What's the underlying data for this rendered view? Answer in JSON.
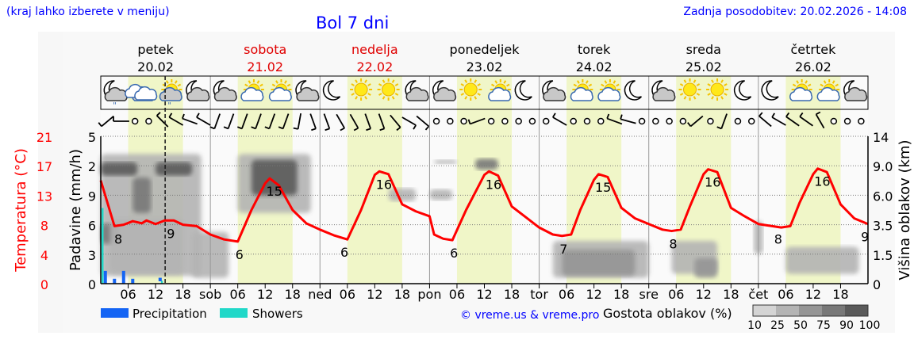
{
  "header": {
    "hint": "(kraj lahko izberete v meniju)",
    "title": "Bol 7 dni",
    "updated": "Zadnja posodobitev: 20.02.2026 - 14:08"
  },
  "days": [
    {
      "name": "petek",
      "date": "20.02",
      "weekend": false
    },
    {
      "name": "sobota",
      "date": "21.02",
      "weekend": true
    },
    {
      "name": "nedelja",
      "date": "22.02",
      "weekend": true
    },
    {
      "name": "ponedeljek",
      "date": "23.02",
      "weekend": false
    },
    {
      "name": "torek",
      "date": "24.02",
      "weekend": false
    },
    {
      "name": "sreda",
      "date": "25.02",
      "weekend": false
    },
    {
      "name": "četrtek",
      "date": "26.02",
      "weekend": false
    }
  ],
  "icons": [
    "moon-cloud-drizzle",
    "clouds",
    "sun-cloud-drizzle",
    "moon-cloud",
    "moon-cloud",
    "sun-small-cloud",
    "sun-cloud",
    "moon-cloud",
    "moon",
    "sun",
    "sun",
    "moon-cloud",
    "moon-cloud",
    "sun",
    "sun-cloud",
    "moon",
    "moon-cloud",
    "sun-cloud",
    "sun-cloud",
    "moon",
    "moon-cloud",
    "sun",
    "sun",
    "moon",
    "moon",
    "sun-cloud",
    "sun-cloud",
    "moon-cloud"
  ],
  "wind_dirs": [
    230,
    270,
    null,
    null,
    315,
    300,
    290,
    300,
    200,
    200,
    200,
    200,
    200,
    200,
    190,
    160,
    160,
    150,
    150,
    160,
    160,
    140,
    120,
    130,
    null,
    null,
    null,
    250,
    null,
    null,
    null,
    null,
    null,
    300,
    null,
    null,
    null,
    290,
    285,
    null,
    null,
    null,
    null,
    230,
    null,
    200,
    null,
    null,
    310,
    300,
    305,
    305,
    330,
    null,
    null,
    null
  ],
  "colors": {
    "temp": "#ff0000",
    "precip": "#1464f4",
    "showers": "#20d8c8",
    "daylight": "#f0f6c8",
    "text_blue": "#0000ff",
    "weekend": "#e00000"
  },
  "chart_data": {
    "type": "line",
    "title": "Bol 7 dni",
    "now_hour": 14.1,
    "x_ticks": [
      "06",
      "12",
      "18",
      "sob",
      "06",
      "12",
      "18",
      "ned",
      "06",
      "12",
      "18",
      "pon",
      "06",
      "12",
      "18",
      "tor",
      "06",
      "12",
      "18",
      "sre",
      "06",
      "12",
      "18",
      "čet",
      "06",
      "12",
      "18"
    ],
    "xlim_hours": [
      0,
      168
    ],
    "axes": {
      "temp": {
        "label": "Temperatura (°C)",
        "ticks": [
          "0",
          "4",
          "8",
          "13",
          "17",
          "21"
        ],
        "ylim": [
          0,
          21
        ]
      },
      "precip": {
        "label": "Padavine (mm/h)",
        "ticks": [
          "0",
          "3",
          "6",
          "9",
          "2",
          "5"
        ]
      },
      "cloud": {
        "label": "Višina oblakov (km)",
        "ticks": [
          "0",
          "1.5",
          "3.5",
          "6.0",
          "9.0",
          "14"
        ],
        "stops_km": [
          0,
          1.5,
          3.5,
          6,
          9,
          14
        ]
      }
    },
    "temperature": {
      "hours": [
        0,
        3,
        5,
        7,
        9,
        10,
        12,
        14,
        16,
        18,
        21,
        24,
        27,
        30,
        33,
        36,
        37,
        39,
        42,
        45,
        48,
        51,
        54,
        57,
        60,
        61,
        63,
        66,
        69,
        72,
        73,
        75,
        77,
        80,
        84,
        85,
        87,
        90,
        93,
        96,
        99,
        101,
        103,
        105,
        108,
        109,
        111,
        114,
        117,
        120,
        123,
        125,
        127,
        129,
        132,
        133,
        135,
        138,
        141,
        144,
        147,
        149,
        151,
        153,
        156,
        157,
        159,
        162,
        165,
        168
      ],
      "values": [
        14.7,
        8.2,
        8.4,
        8.9,
        8.6,
        9.0,
        8.5,
        9.0,
        9.0,
        8.4,
        8.2,
        7.0,
        6.3,
        6.0,
        10.5,
        14.3,
        15.0,
        14.0,
        10.5,
        8.6,
        7.7,
        6.9,
        6.3,
        10.5,
        15.5,
        16.0,
        15.6,
        11.3,
        10.3,
        9.6,
        7.0,
        6.4,
        6.2,
        10.5,
        15.5,
        16.0,
        15.4,
        11.0,
        9.5,
        8.0,
        7.0,
        6.8,
        7.0,
        10.5,
        14.8,
        15.6,
        15.2,
        10.8,
        9.3,
        8.5,
        7.7,
        7.5,
        7.7,
        11.0,
        15.6,
        16.3,
        15.9,
        10.8,
        9.6,
        8.5,
        8.2,
        8.0,
        8.2,
        11.5,
        15.6,
        16.4,
        15.9,
        11.3,
        9.3,
        8.5
      ]
    },
    "temp_labels": [
      {
        "h": 3.5,
        "t": "8"
      },
      {
        "h": 15,
        "t": "9"
      },
      {
        "h": 30,
        "t": "6"
      },
      {
        "h": 38,
        "t": "15"
      },
      {
        "h": 53,
        "t": "6"
      },
      {
        "h": 62,
        "t": "16"
      },
      {
        "h": 77,
        "t": "6"
      },
      {
        "h": 86,
        "t": "16"
      },
      {
        "h": 101,
        "t": "7"
      },
      {
        "h": 110,
        "t": "15"
      },
      {
        "h": 125,
        "t": "8"
      },
      {
        "h": 134,
        "t": "16"
      },
      {
        "h": 148,
        "t": "8"
      },
      {
        "h": 158,
        "t": "16"
      },
      {
        "h": 167,
        "t": "9"
      }
    ],
    "precipitation": {
      "hours": [
        1,
        3,
        5,
        7,
        13
      ],
      "values": [
        1.3,
        0.5,
        1.3,
        0.5,
        0.6
      ]
    },
    "showers": {
      "hours": [
        0,
        13
      ],
      "values": [
        7.7,
        0.3
      ]
    },
    "cloud_cover": [
      {
        "h0": 0,
        "h1": 22,
        "k0": 0.4,
        "k1": 11,
        "cover": 25
      },
      {
        "h0": 0,
        "h1": 8,
        "k0": 8,
        "k1": 9.6,
        "cover": 90
      },
      {
        "h0": 12,
        "h1": 20,
        "k0": 8,
        "k1": 9.6,
        "cover": 90
      },
      {
        "h0": 7,
        "h1": 11,
        "k0": 4.5,
        "k1": 7.8,
        "cover": 75
      },
      {
        "h0": 0,
        "h1": 4,
        "k0": 2.2,
        "k1": 3.6,
        "cover": 75
      },
      {
        "h0": 2,
        "h1": 18,
        "k0": 0.5,
        "k1": 4,
        "cover": 40
      },
      {
        "h0": 20,
        "h1": 28,
        "k0": 0.3,
        "k1": 3,
        "cover": 40
      },
      {
        "h0": 30,
        "h1": 46,
        "k0": 4.5,
        "k1": 11,
        "cover": 40
      },
      {
        "h0": 33,
        "h1": 43,
        "k0": 6,
        "k1": 10,
        "cover": 90
      },
      {
        "h0": 63,
        "h1": 69,
        "k0": 5.5,
        "k1": 6.7,
        "cover": 25
      },
      {
        "h0": 72,
        "h1": 77,
        "k0": 5.6,
        "k1": 6.6,
        "cover": 25
      },
      {
        "h0": 73,
        "h1": 78,
        "k0": 9.3,
        "k1": 10,
        "cover": 25
      },
      {
        "h0": 82,
        "h1": 87,
        "k0": 8.6,
        "k1": 10.2,
        "cover": 75
      },
      {
        "h0": 99,
        "h1": 120,
        "k0": 0.3,
        "k1": 2.4,
        "cover": 25
      },
      {
        "h0": 101,
        "h1": 117,
        "k0": 0.4,
        "k1": 1.8,
        "cover": 50
      },
      {
        "h0": 125,
        "h1": 135,
        "k0": 0.5,
        "k1": 2.4,
        "cover": 40
      },
      {
        "h0": 130,
        "h1": 135,
        "k0": 0.3,
        "k1": 1.3,
        "cover": 50
      },
      {
        "h0": 143,
        "h1": 145,
        "k0": 1.5,
        "k1": 3.8,
        "cover": 40
      },
      {
        "h0": 150,
        "h1": 166,
        "k0": 0.5,
        "k1": 2,
        "cover": 40
      }
    ],
    "legend": {
      "precip": "Precipitation",
      "showers": "Showers",
      "credit": "© vreme.us & vreme.pro",
      "cloud_title": "Gostota oblakov (%)",
      "cloud_levels": [
        "10",
        "25",
        "50",
        "75",
        "90",
        "100"
      ],
      "cloud_colors": [
        "#d4d4d4",
        "#b4b4b4",
        "#959595",
        "#787878",
        "#5a5a5a"
      ]
    }
  }
}
